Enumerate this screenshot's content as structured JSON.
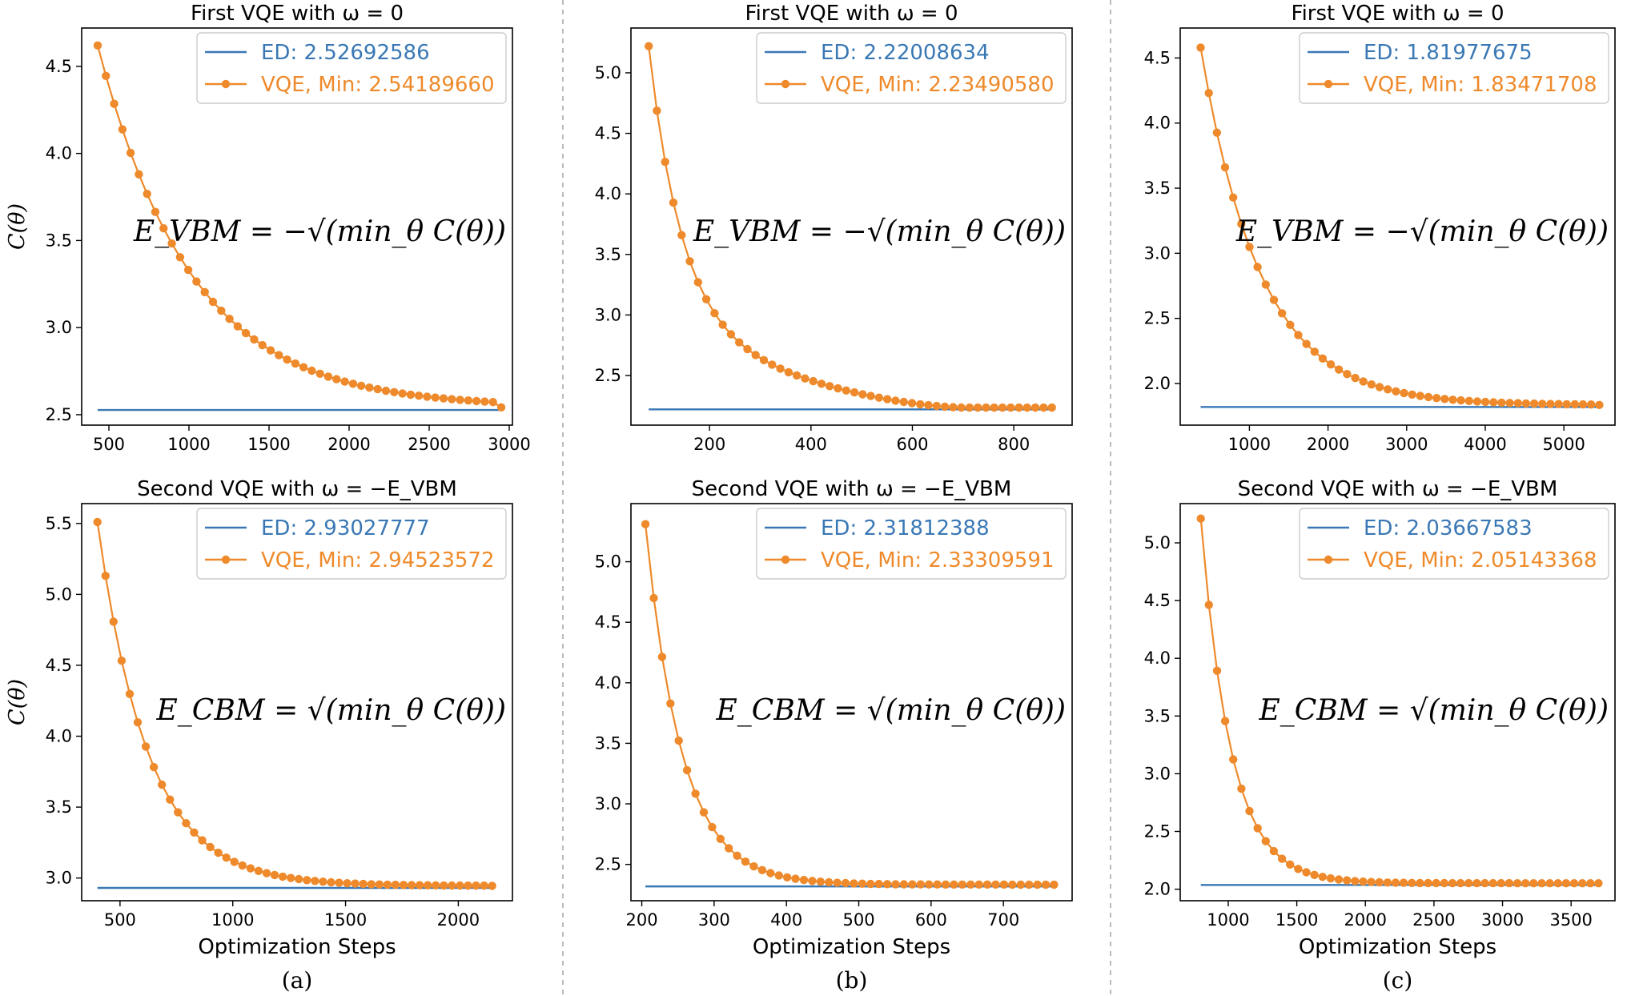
{
  "colors": {
    "ed": "#3a78b5",
    "vqe": "#ee8a2b",
    "separator": "#bbbbbb"
  },
  "xlabel": "Optimization Steps",
  "ylabel": "C(θ)",
  "panel_labels": [
    "(a)",
    "(b)",
    "(c)"
  ],
  "chart_data": [
    {
      "type": "line",
      "title": "First VQE with ω = 0",
      "formula": "E_VBM = −√(min_θ C(θ))",
      "ed_label": "ED: 2.52692586",
      "vqe_label": "VQE, Min: 2.54189660",
      "ed_value": 2.52692586,
      "vqe_min": 2.5418966,
      "x_start": 430,
      "x_end": 2950,
      "n_points": 50,
      "y_start": 4.62,
      "decay": 0.055,
      "shape": "exp",
      "xlim": [
        330,
        3020
      ],
      "ylim": [
        2.44,
        4.72
      ],
      "xticks": [
        500,
        1000,
        1500,
        2000,
        2500,
        3000
      ],
      "yticks": [
        2.5,
        3.0,
        3.5,
        4.0,
        4.5
      ],
      "show_ylabel": true,
      "show_xlabel": false
    },
    {
      "type": "line",
      "title": "First VQE with ω = 0",
      "formula": "E_VBM = −√(min_θ C(θ))",
      "ed_label": "ED: 2.22008634",
      "vqe_label": "VQE, Min: 2.23490580",
      "ed_value": 2.22008634,
      "vqe_min": 2.2349058,
      "x_start": 80,
      "x_end": 875,
      "n_points": 50,
      "y_start": 5.22,
      "decay": 0.06,
      "shape": "two-stage",
      "xlim": [
        45,
        915
      ],
      "ylim": [
        2.09,
        5.37
      ],
      "xticks": [
        200,
        400,
        600,
        800
      ],
      "yticks": [
        2.5,
        3.0,
        3.5,
        4.0,
        4.5,
        5.0
      ],
      "show_ylabel": false,
      "show_xlabel": false
    },
    {
      "type": "line",
      "title": "First VQE with ω = 0",
      "formula": "E_VBM = −√(min_θ C(θ))",
      "ed_label": "ED: 1.81977675",
      "vqe_label": "VQE, Min: 1.83471708",
      "ed_value": 1.81977675,
      "vqe_min": 1.83471708,
      "x_start": 380,
      "x_end": 5450,
      "n_points": 50,
      "y_start": 4.58,
      "decay": 0.085,
      "shape": "exp",
      "xlim": [
        120,
        5650
      ],
      "ylim": [
        1.68,
        4.73
      ],
      "xticks": [
        1000,
        2000,
        3000,
        4000,
        5000
      ],
      "yticks": [
        2.0,
        2.5,
        3.0,
        3.5,
        4.0,
        4.5
      ],
      "show_ylabel": false,
      "show_xlabel": false
    },
    {
      "type": "line",
      "title": "Second VQE with ω = −E_VBM",
      "formula": "E_CBM = √(min_θ C(θ))",
      "ed_label": "ED: 2.93027777",
      "vqe_label": "VQE, Min: 2.94523572",
      "ed_value": 2.93027777,
      "vqe_min": 2.94523572,
      "x_start": 400,
      "x_end": 2150,
      "n_points": 50,
      "y_start": 5.51,
      "decay": 0.1,
      "shape": "exp",
      "xlim": [
        330,
        2240
      ],
      "ylim": [
        2.84,
        5.64
      ],
      "xticks": [
        500,
        1000,
        1500,
        2000
      ],
      "yticks": [
        3.0,
        3.5,
        4.0,
        4.5,
        5.0,
        5.5
      ],
      "show_ylabel": true,
      "show_xlabel": true
    },
    {
      "type": "line",
      "title": "Second VQE with ω = −E_VBM",
      "formula": "E_CBM = √(min_θ C(θ))",
      "ed_label": "ED: 2.31812388",
      "vqe_label": "VQE, Min: 2.33309591",
      "ed_value": 2.31812388,
      "vqe_min": 2.33309591,
      "x_start": 205,
      "x_end": 770,
      "n_points": 50,
      "y_start": 5.31,
      "decay": 0.17,
      "shape": "exp",
      "xlim": [
        185,
        795
      ],
      "ylim": [
        2.2,
        5.48
      ],
      "xticks": [
        200,
        300,
        400,
        500,
        600,
        700
      ],
      "yticks": [
        2.5,
        3.0,
        3.5,
        4.0,
        4.5,
        5.0
      ],
      "show_ylabel": false,
      "show_xlabel": true
    },
    {
      "type": "line",
      "title": "Second VQE with ω = −E_VBM",
      "formula": "E_CBM = √(min_θ C(θ))",
      "ed_label": "ED: 2.03667583",
      "vqe_label": "VQE, Min: 2.05143368",
      "ed_value": 2.03667583,
      "vqe_min": 2.05143368,
      "x_start": 800,
      "x_end": 3700,
      "n_points": 50,
      "y_start": 5.21,
      "decay": 0.2,
      "shape": "exp",
      "xlim": [
        650,
        3820
      ],
      "ylim": [
        1.9,
        5.34
      ],
      "xticks": [
        1000,
        1500,
        2000,
        2500,
        3000,
        3500
      ],
      "yticks": [
        2.0,
        2.5,
        3.0,
        3.5,
        4.0,
        4.5,
        5.0
      ],
      "show_ylabel": false,
      "show_xlabel": true
    }
  ]
}
